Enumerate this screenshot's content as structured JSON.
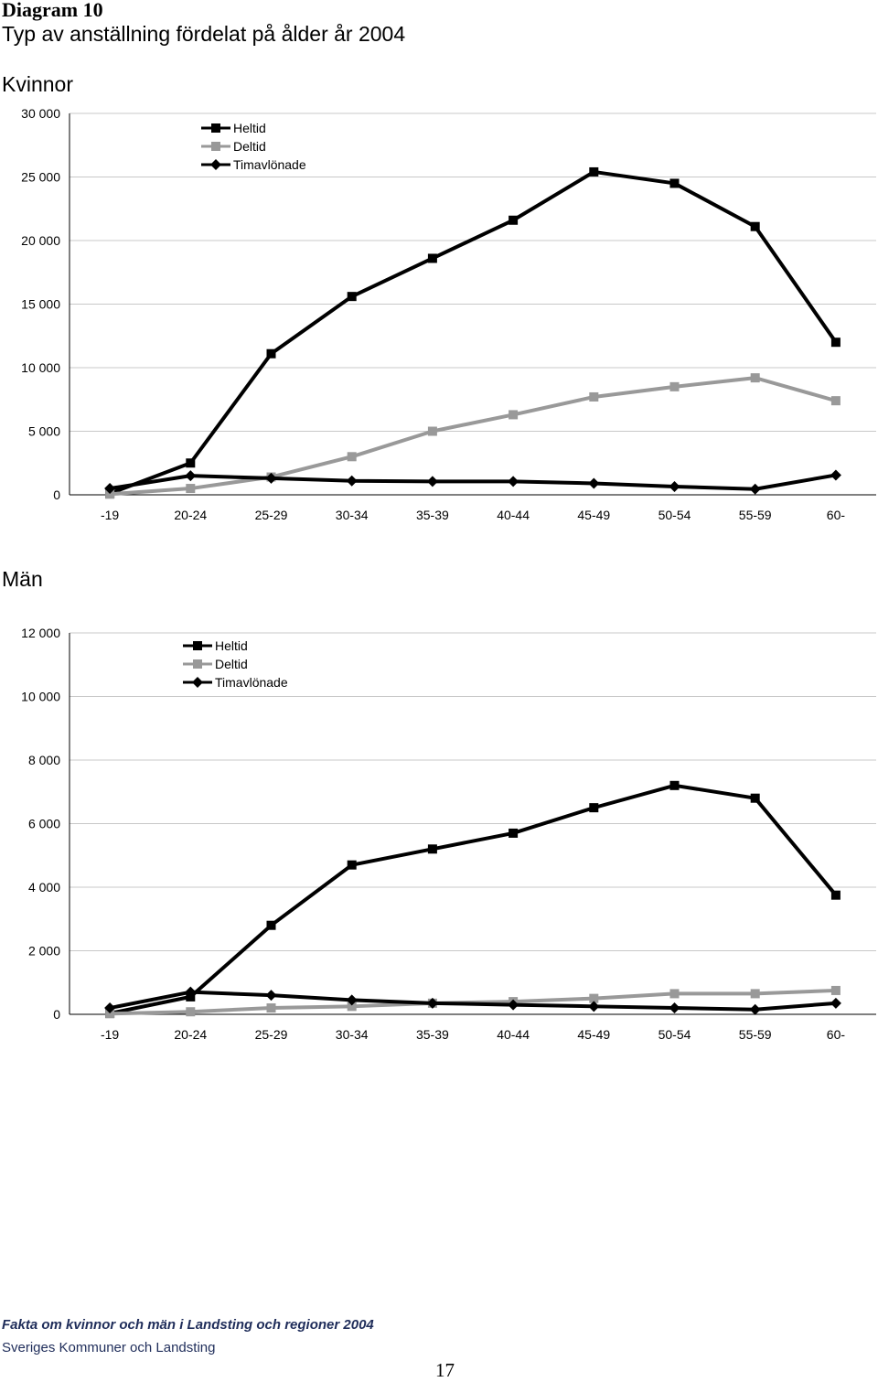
{
  "page": {
    "heading": "Diagram 10",
    "subheading": "Typ av anställning fördelat på ålder år 2004",
    "footer_publication": "Fakta om kvinnor och män i Landsting och regioner 2004",
    "footer_publisher": "Sveriges Kommuner och Landsting",
    "page_number": "17"
  },
  "chart_data": [
    {
      "type": "line",
      "title": "Kvinnor",
      "categories": [
        "-19",
        "20-24",
        "25-29",
        "30-34",
        "35-39",
        "40-44",
        "45-49",
        "50-54",
        "55-59",
        "60-"
      ],
      "ylim": [
        0,
        30000
      ],
      "yticks": [
        0,
        5000,
        10000,
        15000,
        20000,
        25000,
        30000
      ],
      "ytick_labels": [
        "0",
        "5 000",
        "10 000",
        "15 000",
        "20 000",
        "25 000",
        "30 000"
      ],
      "grid": true,
      "legend_position": "top-left",
      "series": [
        {
          "name": "Heltid",
          "color": "#000000",
          "marker": "square",
          "values": [
            100,
            2500,
            11100,
            15600,
            18600,
            21600,
            25400,
            24500,
            21100,
            12000
          ]
        },
        {
          "name": "Deltid",
          "color": "#999999",
          "marker": "square",
          "values": [
            50,
            500,
            1400,
            3000,
            5000,
            6300,
            7700,
            8500,
            9200,
            7400
          ]
        },
        {
          "name": "Timavlönade",
          "color": "#000000",
          "marker": "diamond",
          "values": [
            500,
            1500,
            1300,
            1100,
            1050,
            1050,
            900,
            650,
            450,
            1550
          ]
        }
      ]
    },
    {
      "type": "line",
      "title": "Män",
      "categories": [
        "-19",
        "20-24",
        "25-29",
        "30-34",
        "35-39",
        "40-44",
        "45-49",
        "50-54",
        "55-59",
        "60-"
      ],
      "ylim": [
        0,
        12000
      ],
      "yticks": [
        0,
        2000,
        4000,
        6000,
        8000,
        10000,
        12000
      ],
      "ytick_labels": [
        "0",
        "2 000",
        "4 000",
        "6 000",
        "8 000",
        "10 000",
        "12 000"
      ],
      "grid": true,
      "legend_position": "top-left",
      "series": [
        {
          "name": "Heltid",
          "color": "#000000",
          "marker": "square",
          "values": [
            30,
            550,
            2800,
            4700,
            5200,
            5700,
            6500,
            7200,
            6800,
            3750
          ]
        },
        {
          "name": "Deltid",
          "color": "#999999",
          "marker": "square",
          "values": [
            20,
            80,
            200,
            250,
            350,
            400,
            500,
            650,
            650,
            750
          ]
        },
        {
          "name": "Timavlönade",
          "color": "#000000",
          "marker": "diamond",
          "values": [
            200,
            700,
            600,
            450,
            350,
            300,
            250,
            200,
            150,
            350
          ]
        }
      ]
    }
  ]
}
